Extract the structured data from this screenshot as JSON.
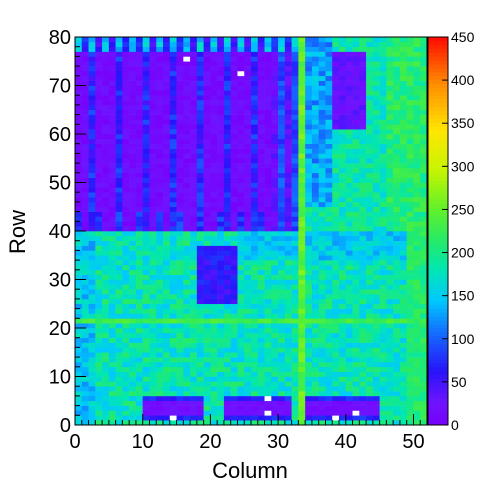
{
  "chart_data": {
    "type": "heatmap",
    "title": "",
    "xlabel": "Column",
    "ylabel": "Row",
    "xlim": [
      0,
      52
    ],
    "ylim": [
      0,
      80
    ],
    "x_ticks": [
      0,
      10,
      20,
      30,
      40,
      50
    ],
    "y_ticks": [
      0,
      10,
      20,
      30,
      40,
      50,
      60,
      70,
      80
    ],
    "colorbar": {
      "range": [
        0,
        450
      ],
      "ticks": [
        0,
        50,
        100,
        150,
        200,
        250,
        300,
        350,
        400,
        450
      ]
    },
    "grid": false,
    "cell_rule": {
      "nx": 52,
      "ny": 80,
      "regions": [
        {
          "desc": "upper-left block, rows 40-80, cols 0-33",
          "value": 20
        },
        {
          "desc": "vertical stripes in upper block",
          "value": 70
        },
        {
          "desc": "right region rows 40-80, cols 33-52",
          "value": 190
        },
        {
          "desc": "lower region rows 0-40",
          "value": 185
        },
        {
          "desc": "dark rectangle rows 26-37, cols 18-24",
          "value": 60
        },
        {
          "desc": "dark pads at rows 1-5",
          "value": 20
        },
        {
          "desc": "bright column 33",
          "value": 260
        },
        {
          "desc": "bright row 22",
          "value": 230
        },
        {
          "desc": "dead pixels",
          "value": 0
        }
      ]
    }
  }
}
